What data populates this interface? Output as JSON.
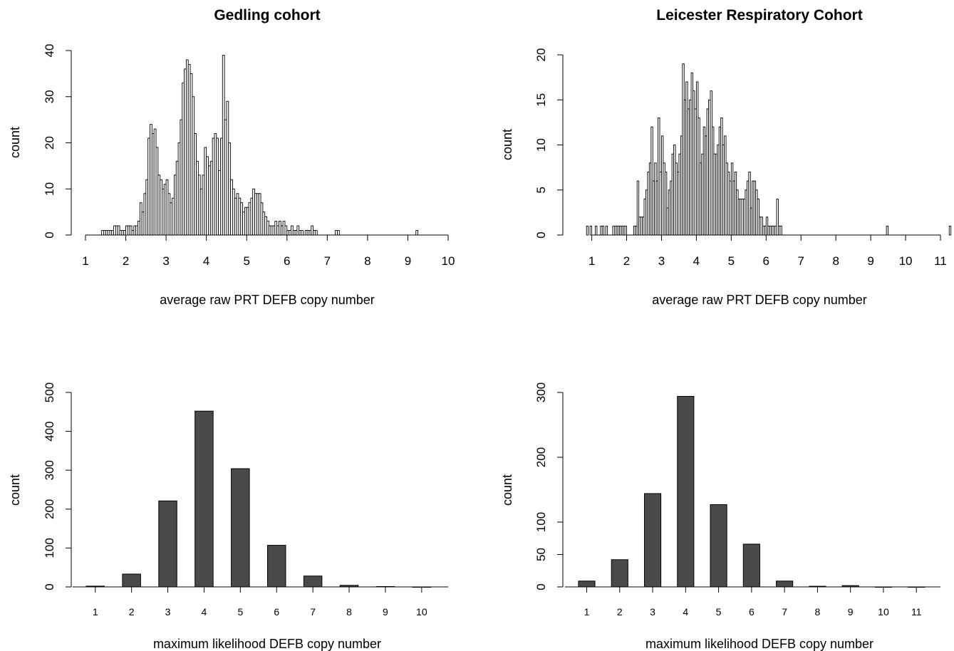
{
  "chart_data": [
    {
      "id": "gedling_raw",
      "type": "histogram",
      "title": "Gedling cohort",
      "xlabel": "average raw PRT DEFB copy number",
      "ylabel": "count",
      "xlim": [
        1,
        10
      ],
      "ylim": [
        0,
        40
      ],
      "xticks": [
        1,
        2,
        3,
        4,
        5,
        6,
        7,
        8,
        9,
        10
      ],
      "yticks": [
        0,
        10,
        20,
        30,
        40
      ],
      "bin_width": 0.05,
      "bins_start": 1.4,
      "counts": [
        1,
        1,
        1,
        1,
        1,
        1,
        2,
        2,
        2,
        1,
        1,
        1,
        2,
        2,
        2,
        1,
        2,
        2,
        3,
        7,
        5,
        9,
        12,
        21,
        24,
        22,
        23,
        19,
        13,
        12,
        10,
        11,
        12,
        9,
        7,
        8,
        13,
        16,
        20,
        25,
        33,
        36,
        38,
        37,
        35,
        30,
        22,
        16,
        13,
        10,
        13,
        19,
        17,
        15,
        16,
        21,
        22,
        21,
        14,
        21,
        39,
        25,
        29,
        20,
        12,
        10,
        8,
        9,
        8,
        7,
        5,
        6,
        6,
        7,
        8,
        10,
        9,
        9,
        9,
        7,
        5,
        4,
        3,
        2,
        2,
        2,
        3,
        2,
        3,
        2,
        3,
        2,
        1,
        1,
        2,
        1,
        1,
        2,
        1,
        1,
        0,
        1,
        1,
        1,
        2,
        1,
        1,
        0,
        0,
        0,
        0,
        0,
        0,
        0,
        0,
        0,
        1,
        1,
        0,
        0,
        0,
        0,
        0,
        0,
        0,
        0,
        0,
        0,
        0,
        0,
        0,
        0,
        0,
        0,
        0,
        0,
        0,
        0,
        0,
        0,
        0,
        0,
        0,
        0,
        0,
        0,
        0,
        0,
        0,
        0,
        0,
        0,
        0,
        0,
        0,
        0,
        1
      ]
    },
    {
      "id": "leicester_raw",
      "type": "histogram",
      "title": "Leicester Respiratory Cohort",
      "xlabel": "average raw PRT DEFB copy number",
      "ylabel": "count",
      "xlim": [
        0.6,
        11
      ],
      "ylim": [
        0,
        20
      ],
      "xticks": [
        1,
        2,
        3,
        4,
        5,
        6,
        7,
        8,
        9,
        10,
        11
      ],
      "yticks": [
        0,
        5,
        10,
        15,
        20
      ],
      "bin_width": 0.05,
      "bins_start": 0.85,
      "counts": [
        1,
        0,
        1,
        0,
        0,
        1,
        0,
        0,
        1,
        1,
        0,
        1,
        0,
        0,
        0,
        1,
        1,
        1,
        1,
        1,
        1,
        1,
        1,
        0,
        0,
        0,
        0,
        1,
        1,
        6,
        2,
        2,
        2,
        4,
        5,
        7,
        8,
        12,
        6,
        8,
        6,
        13,
        7,
        11,
        8,
        7,
        3,
        5,
        6,
        9,
        10,
        8,
        7,
        9,
        11,
        19,
        15,
        17,
        14,
        15,
        18,
        16,
        14,
        17,
        13,
        8,
        9,
        12,
        11,
        14,
        15,
        16,
        12,
        9,
        9,
        10,
        12,
        13,
        10,
        11,
        8,
        7,
        6,
        8,
        6,
        7,
        5,
        4,
        4,
        4,
        4,
        5,
        6,
        7,
        3,
        6,
        6,
        5,
        4,
        2,
        2,
        1,
        1,
        2,
        1,
        1,
        1,
        1,
        1,
        4,
        1,
        1,
        0,
        0,
        0,
        0,
        0,
        0,
        0,
        0,
        0,
        0,
        0,
        0,
        0,
        0,
        0,
        0,
        0,
        0,
        0,
        0,
        0,
        0,
        0,
        0,
        0,
        0,
        0,
        0,
        0,
        0,
        0,
        0,
        0,
        0,
        0,
        0,
        0,
        0,
        0,
        0,
        0,
        0,
        0,
        0,
        0,
        0,
        0,
        0,
        0,
        0,
        0,
        0,
        0,
        0,
        0,
        0,
        0,
        0,
        0,
        0,
        1,
        0,
        0,
        0,
        0,
        0,
        0,
        0,
        0,
        0,
        0,
        0,
        0,
        0,
        0,
        0,
        0,
        0,
        0,
        0,
        0,
        0,
        0,
        0,
        0,
        0,
        0,
        0,
        0,
        0,
        0,
        0,
        0,
        0,
        0,
        0,
        1
      ]
    },
    {
      "id": "gedling_ml",
      "type": "bar",
      "title": "",
      "xlabel": "maximum likelihood DEFB copy number",
      "ylabel": "count",
      "ylim": [
        0,
        500
      ],
      "yticks": [
        0,
        100,
        200,
        300,
        400,
        500
      ],
      "categories": [
        "1",
        "2",
        "3",
        "4",
        "5",
        "6",
        "7",
        "8",
        "9",
        "10"
      ],
      "values": [
        2,
        33,
        221,
        452,
        304,
        107,
        28,
        4,
        1,
        0
      ]
    },
    {
      "id": "leicester_ml",
      "type": "bar",
      "title": "",
      "xlabel": "maximum likelihood DEFB copy number",
      "ylabel": "count",
      "ylim": [
        0,
        300
      ],
      "yticks": [
        0,
        50,
        100,
        200,
        300
      ],
      "categories": [
        "1",
        "2",
        "3",
        "4",
        "5",
        "6",
        "7",
        "8",
        "9",
        "10",
        "11"
      ],
      "values": [
        9,
        42,
        144,
        294,
        127,
        66,
        9,
        1,
        2,
        0,
        0
      ]
    }
  ]
}
